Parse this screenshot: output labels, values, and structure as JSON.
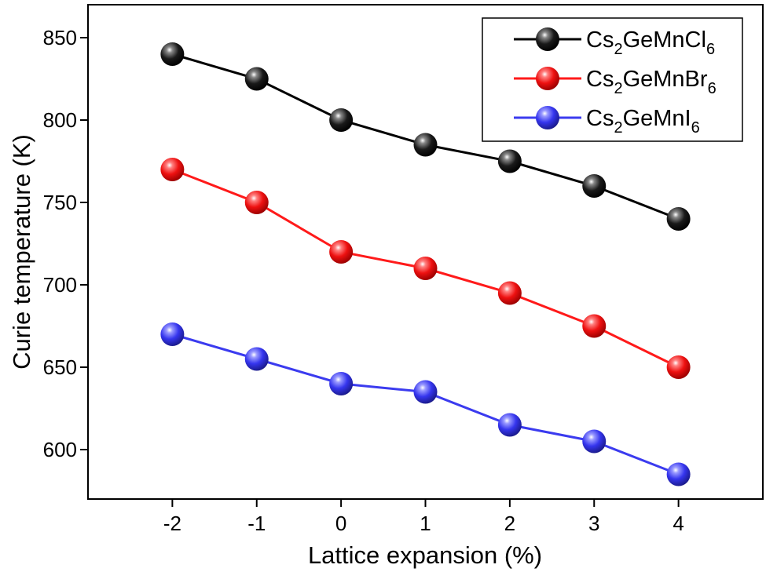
{
  "chart_data": {
    "type": "line",
    "xlabel": "Lattice expansion (%)",
    "ylabel": "Curie temperature (K)",
    "x": [
      -2,
      -1,
      0,
      1,
      2,
      3,
      4
    ],
    "xlim": [
      -3,
      5
    ],
    "ylim": [
      570,
      870
    ],
    "xticks": [
      "-2",
      "-1",
      "0",
      "1",
      "2",
      "3",
      "4"
    ],
    "yticks": [
      "600",
      "650",
      "700",
      "750",
      "800",
      "850"
    ],
    "ytick_values": [
      600,
      650,
      700,
      750,
      800,
      850
    ],
    "grid": false,
    "legend_position": "top-right",
    "series": [
      {
        "name_parts": {
          "a": "Cs",
          "a_sub": "2",
          "b": "GeMnCl",
          "b_sub": "6"
        },
        "color": "#000000",
        "values": [
          840,
          825,
          800,
          785,
          775,
          760,
          740
        ]
      },
      {
        "name_parts": {
          "a": "Cs",
          "a_sub": "2",
          "b": "GeMnBr",
          "b_sub": "6"
        },
        "color": "#ff1a1a",
        "values": [
          770,
          750,
          720,
          710,
          695,
          675,
          650
        ]
      },
      {
        "name_parts": {
          "a": "Cs",
          "a_sub": "2",
          "b": "GeMnI",
          "b_sub": "6"
        },
        "color": "#3b3bef",
        "values": [
          670,
          655,
          640,
          635,
          615,
          605,
          585
        ]
      }
    ]
  }
}
